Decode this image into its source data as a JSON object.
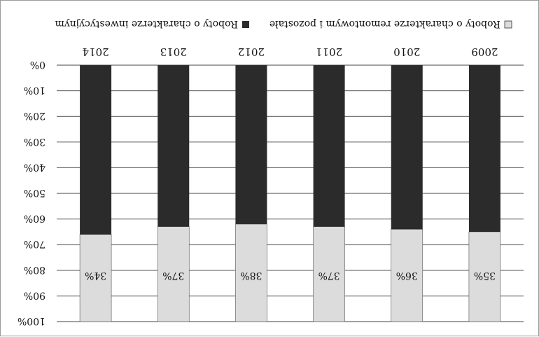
{
  "chart_data": {
    "type": "bar",
    "stacked": true,
    "percent": true,
    "categories": [
      "2009",
      "2010",
      "2011",
      "2012",
      "2013",
      "2014"
    ],
    "series": [
      {
        "name": "Roboty o charakterze inwestycyjnym",
        "color": "#2b2b2b",
        "values": [
          65,
          64,
          63,
          62,
          63,
          66
        ]
      },
      {
        "name": "Roboty o charakterze remontowym i pozostałe",
        "color": "#dcdcdc",
        "values": [
          35,
          36,
          37,
          38,
          37,
          34
        ]
      }
    ],
    "data_labels": [
      "35%",
      "36%",
      "37%",
      "38%",
      "37%",
      "34%"
    ],
    "y_ticks": [
      "0%",
      "10%",
      "20%",
      "30%",
      "40%",
      "50%",
      "60%",
      "70%",
      "80%",
      "90%",
      "100%"
    ],
    "ylim": [
      0,
      100
    ],
    "grid": true,
    "legend_position": "top",
    "orientation": "rotated 180°"
  }
}
